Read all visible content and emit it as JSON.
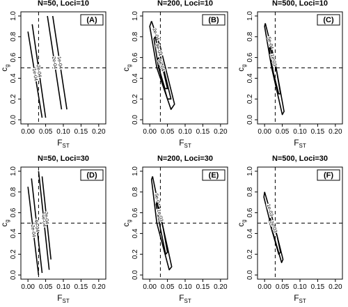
{
  "chart_data": [
    {
      "type": "contour",
      "title": "N=50, Loci=10",
      "panel_label": "(A)",
      "x_label": "F",
      "x_label_sub": "ST",
      "y_label": "c",
      "y_label_sub": "g",
      "xlim": [
        -0.02,
        0.22
      ],
      "ylim": [
        -0.04,
        1.04
      ],
      "xticks": [
        {
          "value": 0,
          "label": "0.00"
        },
        {
          "value": 0.05,
          "label": "0.05"
        },
        {
          "value": 0.1,
          "label": "0.10"
        },
        {
          "value": 0.15,
          "label": "0.15"
        },
        {
          "value": 0.2,
          "label": "0.20"
        }
      ],
      "yticks": [
        {
          "value": 0,
          "label": "0.0"
        },
        {
          "value": 0.2,
          "label": "0.2"
        },
        {
          "value": 0.4,
          "label": "0.4"
        },
        {
          "value": 0.6,
          "label": "0.6"
        },
        {
          "value": 0.8,
          "label": "0.8"
        },
        {
          "value": 1,
          "label": "1.0"
        }
      ],
      "ref_x": 0.03,
      "ref_y": 0.5,
      "contours": [
        {
          "level": 0.0001,
          "label": "1e-04",
          "x": [
            0.0,
            0.04
          ],
          "y": [
            0.85,
            0.02
          ]
        },
        {
          "level": 0.0002,
          "label": "2e-04",
          "x": [
            0.012,
            0.05
          ],
          "y": [
            0.92,
            0.02
          ]
        },
        {
          "level": 0.0002,
          "label": "2e-04",
          "x": [
            0.055,
            0.095
          ],
          "y": [
            1.0,
            0.1
          ]
        },
        {
          "level": 0.0001,
          "label": "1e-04",
          "x": [
            0.07,
            0.11
          ],
          "y": [
            1.0,
            0.1
          ]
        }
      ]
    },
    {
      "type": "contour",
      "title": "N=200, Loci=10",
      "panel_label": "(B)",
      "x_label": "F",
      "x_label_sub": "ST",
      "y_label": "c",
      "y_label_sub": "g",
      "xlim": [
        -0.02,
        0.22
      ],
      "ylim": [
        -0.04,
        1.04
      ],
      "xticks": [
        {
          "value": 0,
          "label": "0.00"
        },
        {
          "value": 0.05,
          "label": "0.05"
        },
        {
          "value": 0.1,
          "label": "0.10"
        },
        {
          "value": 0.15,
          "label": "0.15"
        },
        {
          "value": 0.2,
          "label": "0.20"
        }
      ],
      "yticks": [
        {
          "value": 0,
          "label": "0.0"
        },
        {
          "value": 0.2,
          "label": "0.2"
        },
        {
          "value": 0.4,
          "label": "0.4"
        },
        {
          "value": 0.6,
          "label": "0.6"
        },
        {
          "value": 0.8,
          "label": "0.8"
        },
        {
          "value": 1,
          "label": "1.0"
        }
      ],
      "ref_x": 0.03,
      "ref_y": 0.5,
      "contours": [
        {
          "level": 0.0002,
          "label": "2e-04",
          "x": [
            0.005,
            0.03,
            0.07,
            0.06,
            0.02,
            0.0,
            0.005
          ],
          "y": [
            0.95,
            0.7,
            0.15,
            0.1,
            0.5,
            0.9,
            0.95
          ]
        },
        {
          "level": 0.0004,
          "label": "4e-04",
          "x": [
            0.015,
            0.035,
            0.06,
            0.05,
            0.025,
            0.012,
            0.015
          ],
          "y": [
            0.8,
            0.55,
            0.2,
            0.2,
            0.5,
            0.78,
            0.8
          ]
        },
        {
          "level": 0.0006,
          "label": "6e-04",
          "x": [
            0.025,
            0.04,
            0.05,
            0.043,
            0.03,
            0.023,
            0.025
          ],
          "y": [
            0.6,
            0.45,
            0.3,
            0.3,
            0.45,
            0.58,
            0.6
          ]
        }
      ]
    },
    {
      "type": "contour",
      "title": "N=500, Loci=10",
      "panel_label": "(C)",
      "x_label": "F",
      "x_label_sub": "ST",
      "y_label": "c",
      "y_label_sub": "g",
      "xlim": [
        -0.02,
        0.22
      ],
      "ylim": [
        -0.04,
        1.04
      ],
      "xticks": [
        {
          "value": 0,
          "label": "0.00"
        },
        {
          "value": 0.05,
          "label": "0.05"
        },
        {
          "value": 0.1,
          "label": "0.10"
        },
        {
          "value": 0.15,
          "label": "0.15"
        },
        {
          "value": 0.2,
          "label": "0.20"
        }
      ],
      "yticks": [
        {
          "value": 0,
          "label": "0.0"
        },
        {
          "value": 0.2,
          "label": "0.2"
        },
        {
          "value": 0.4,
          "label": "0.4"
        },
        {
          "value": 0.6,
          "label": "0.6"
        },
        {
          "value": 0.8,
          "label": "0.8"
        },
        {
          "value": 1,
          "label": "1.0"
        }
      ],
      "ref_x": 0.03,
      "ref_y": 0.5,
      "contours": [
        {
          "level": 0.0005,
          "label": "5e-04",
          "x": [
            0.002,
            0.03,
            0.055,
            0.05,
            0.02,
            0.0,
            0.002
          ],
          "y": [
            0.93,
            0.55,
            0.08,
            0.05,
            0.5,
            0.9,
            0.93
          ]
        },
        {
          "level": 0.001,
          "label": "1e-03",
          "x": [
            0.015,
            0.035,
            0.045,
            0.04,
            0.025,
            0.013,
            0.015
          ],
          "y": [
            0.7,
            0.45,
            0.25,
            0.25,
            0.45,
            0.68,
            0.7
          ]
        }
      ]
    },
    {
      "type": "contour",
      "title": "N=50, Loci=30",
      "panel_label": "(D)",
      "x_label": "F",
      "x_label_sub": "ST",
      "y_label": "c",
      "y_label_sub": "g",
      "xlim": [
        -0.02,
        0.22
      ],
      "ylim": [
        -0.04,
        1.04
      ],
      "xticks": [
        {
          "value": 0,
          "label": "0.00"
        },
        {
          "value": 0.05,
          "label": "0.05"
        },
        {
          "value": 0.1,
          "label": "0.10"
        },
        {
          "value": 0.15,
          "label": "0.15"
        },
        {
          "value": 0.2,
          "label": "0.20"
        }
      ],
      "yticks": [
        {
          "value": 0,
          "label": "0.0"
        },
        {
          "value": 0.2,
          "label": "0.2"
        },
        {
          "value": 0.4,
          "label": "0.4"
        },
        {
          "value": 0.6,
          "label": "0.6"
        },
        {
          "value": 0.8,
          "label": "0.8"
        },
        {
          "value": 1,
          "label": "1.0"
        }
      ],
      "ref_x": 0.03,
      "ref_y": 0.5,
      "contours": [
        {
          "level": 0.0002,
          "label": "2e-04",
          "x": [
            0.0,
            0.03
          ],
          "y": [
            0.85,
            0.0
          ]
        },
        {
          "level": 0.0004,
          "label": "4e-04",
          "x": [
            0.01,
            0.04
          ],
          "y": [
            0.93,
            0.02
          ]
        },
        {
          "level": 0.0004,
          "label": "4e-04",
          "x": [
            0.03,
            0.06
          ],
          "y": [
            1.0,
            0.05
          ]
        },
        {
          "level": 0.0002,
          "label": "2e-04",
          "x": [
            0.04,
            0.065
          ],
          "y": [
            0.95,
            0.15
          ]
        }
      ]
    },
    {
      "type": "contour",
      "title": "N=200, Loci=30",
      "panel_label": "(E)",
      "x_label": "F",
      "x_label_sub": "ST",
      "y_label": "c",
      "y_label_sub": "g",
      "xlim": [
        -0.02,
        0.22
      ],
      "ylim": [
        -0.04,
        1.04
      ],
      "xticks": [
        {
          "value": 0,
          "label": "0.00"
        },
        {
          "value": 0.05,
          "label": "0.05"
        },
        {
          "value": 0.1,
          "label": "0.10"
        },
        {
          "value": 0.15,
          "label": "0.15"
        },
        {
          "value": 0.2,
          "label": "0.20"
        }
      ],
      "yticks": [
        {
          "value": 0,
          "label": "0.0"
        },
        {
          "value": 0.2,
          "label": "0.2"
        },
        {
          "value": 0.4,
          "label": "0.4"
        },
        {
          "value": 0.6,
          "label": "0.6"
        },
        {
          "value": 0.8,
          "label": "0.8"
        },
        {
          "value": 1,
          "label": "1.0"
        }
      ],
      "ref_x": 0.03,
      "ref_y": 0.5,
      "contours": [
        {
          "level": 0.0005,
          "label": "5e-04",
          "x": [
            0.008,
            0.035,
            0.062,
            0.055,
            0.02,
            0.005,
            0.008
          ],
          "y": [
            0.95,
            0.5,
            0.08,
            0.05,
            0.5,
            0.92,
            0.95
          ]
        },
        {
          "level": 0.001,
          "label": "1e-03",
          "x": [
            0.02,
            0.038,
            0.05,
            0.045,
            0.03,
            0.018,
            0.02
          ],
          "y": [
            0.7,
            0.45,
            0.22,
            0.2,
            0.45,
            0.68,
            0.7
          ]
        }
      ]
    },
    {
      "type": "contour",
      "title": "N=500, Loci=30",
      "panel_label": "(F)",
      "x_label": "F",
      "x_label_sub": "ST",
      "y_label": "c",
      "y_label_sub": "g",
      "xlim": [
        -0.02,
        0.22
      ],
      "ylim": [
        -0.04,
        1.04
      ],
      "xticks": [
        {
          "value": 0,
          "label": "0.00"
        },
        {
          "value": 0.05,
          "label": "0.05"
        },
        {
          "value": 0.1,
          "label": "0.10"
        },
        {
          "value": 0.15,
          "label": "0.15"
        },
        {
          "value": 0.2,
          "label": "0.20"
        }
      ],
      "yticks": [
        {
          "value": 0,
          "label": "0.0"
        },
        {
          "value": 0.2,
          "label": "0.2"
        },
        {
          "value": 0.4,
          "label": "0.4"
        },
        {
          "value": 0.6,
          "label": "0.6"
        },
        {
          "value": 0.8,
          "label": "0.8"
        },
        {
          "value": 1,
          "label": "1.0"
        }
      ],
      "ref_x": 0.03,
      "ref_y": 0.5,
      "contours": [
        {
          "level": 0.001,
          "label": "1e-03",
          "x": [
            0.0,
            0.03,
            0.052,
            0.048,
            0.02,
            -0.002,
            0.0
          ],
          "y": [
            0.8,
            0.45,
            0.15,
            0.12,
            0.45,
            0.75,
            0.8
          ]
        },
        {
          "level": 0.002,
          "label": "2e-03",
          "x": [
            0.015,
            0.035,
            0.045,
            0.04,
            0.025,
            0.013,
            0.015
          ],
          "y": [
            0.55,
            0.38,
            0.22,
            0.2,
            0.38,
            0.52,
            0.55
          ]
        }
      ]
    }
  ]
}
